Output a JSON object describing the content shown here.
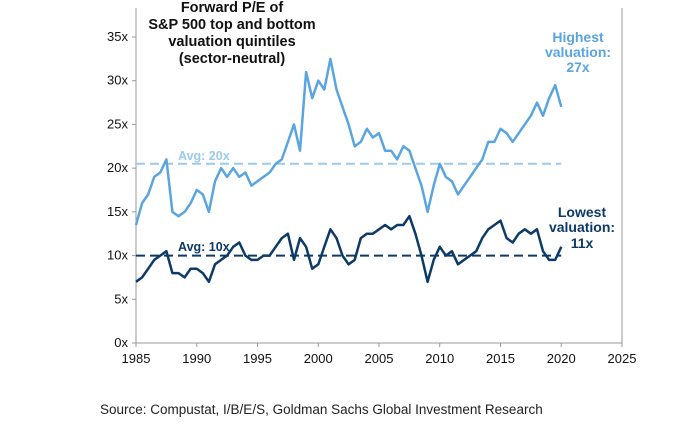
{
  "chart_data": {
    "type": "line",
    "title": [
      "Forward P/E of",
      "S&P 500 top and bottom",
      "valuation quintiles",
      "(sector-neutral)"
    ],
    "xlabel": "",
    "ylabel": "",
    "xlim": [
      1985,
      2025
    ],
    "ylim": [
      0,
      35
    ],
    "xticks": [
      "1985",
      "1990",
      "1995",
      "2000",
      "2005",
      "2010",
      "2015",
      "2020",
      "2025"
    ],
    "yticks": [
      "0x",
      "5x",
      "10x",
      "15x",
      "20x",
      "25x",
      "30x",
      "35x"
    ],
    "grid": false,
    "colors": {
      "high": "#5aa5e0",
      "low": "#0d3a66",
      "high_avg": "#9ccbee",
      "low_avg": "#0d3a66"
    },
    "x": [
      1985,
      1985.5,
      1986,
      1986.5,
      1987,
      1987.5,
      1988,
      1988.5,
      1989,
      1989.5,
      1990,
      1990.5,
      1991,
      1991.5,
      1992,
      1992.5,
      1993,
      1993.5,
      1994,
      1994.5,
      1995,
      1995.5,
      1996,
      1996.5,
      1997,
      1997.5,
      1998,
      1998.5,
      1999,
      1999.5,
      2000,
      2000.5,
      2001,
      2001.5,
      2002,
      2002.5,
      2003,
      2003.5,
      2004,
      2004.5,
      2005,
      2005.5,
      2006,
      2006.5,
      2007,
      2007.5,
      2008,
      2008.5,
      2009,
      2009.5,
      2010,
      2010.5,
      2011,
      2011.5,
      2012,
      2012.5,
      2013,
      2013.5,
      2014,
      2014.5,
      2015,
      2015.5,
      2016,
      2016.5,
      2017,
      2017.5,
      2018,
      2018.5,
      2019,
      2019.5,
      2020
    ],
    "series": [
      {
        "name": "Highest valuation",
        "label": [
          "Highest",
          "valuation:",
          "27x"
        ],
        "values": [
          13.5,
          16,
          17,
          19,
          19.5,
          21,
          15,
          14.5,
          15,
          16,
          17.5,
          17,
          15,
          18.5,
          20,
          19,
          20,
          19,
          19.5,
          18,
          18.5,
          19,
          19.5,
          20.5,
          21,
          23,
          25,
          22,
          31,
          28,
          30,
          29,
          32.5,
          29,
          27,
          25,
          22.5,
          23,
          24.5,
          23.5,
          24,
          22,
          22,
          21,
          22.5,
          22,
          20,
          18,
          15,
          18,
          20.5,
          19,
          18.5,
          17,
          18,
          19,
          20,
          21,
          23,
          23,
          24.5,
          24,
          23,
          24,
          25,
          26,
          27.5,
          26,
          28,
          29.5,
          27
        ],
        "avg": 20.5,
        "avg_label": "Avg: 20x"
      },
      {
        "name": "Lowest valuation",
        "label": [
          "Lowest",
          "valuation:",
          "11x"
        ],
        "values": [
          7,
          7.5,
          8.5,
          9.5,
          10,
          10.5,
          8,
          8,
          7.5,
          8.5,
          8.5,
          8,
          7,
          9,
          9.5,
          10,
          11,
          11.5,
          10,
          9.5,
          9.5,
          10,
          10,
          11,
          12,
          12.5,
          9.5,
          12,
          11,
          8.5,
          9,
          11,
          13,
          12,
          10,
          9,
          9.5,
          12,
          12.5,
          12.5,
          13,
          13.5,
          13,
          13.5,
          13.5,
          14.5,
          12.5,
          10,
          7,
          9.5,
          11,
          10,
          10.5,
          9,
          9.5,
          10,
          10.5,
          12,
          13,
          13.5,
          14,
          12,
          11.5,
          12.5,
          13,
          12.5,
          13,
          10.5,
          9.5,
          9.5,
          11
        ],
        "avg": 10,
        "avg_label": "Avg: 10x"
      }
    ],
    "source": "Source: Compustat, I/B/E/S, Goldman Sachs Global Investment Research"
  }
}
